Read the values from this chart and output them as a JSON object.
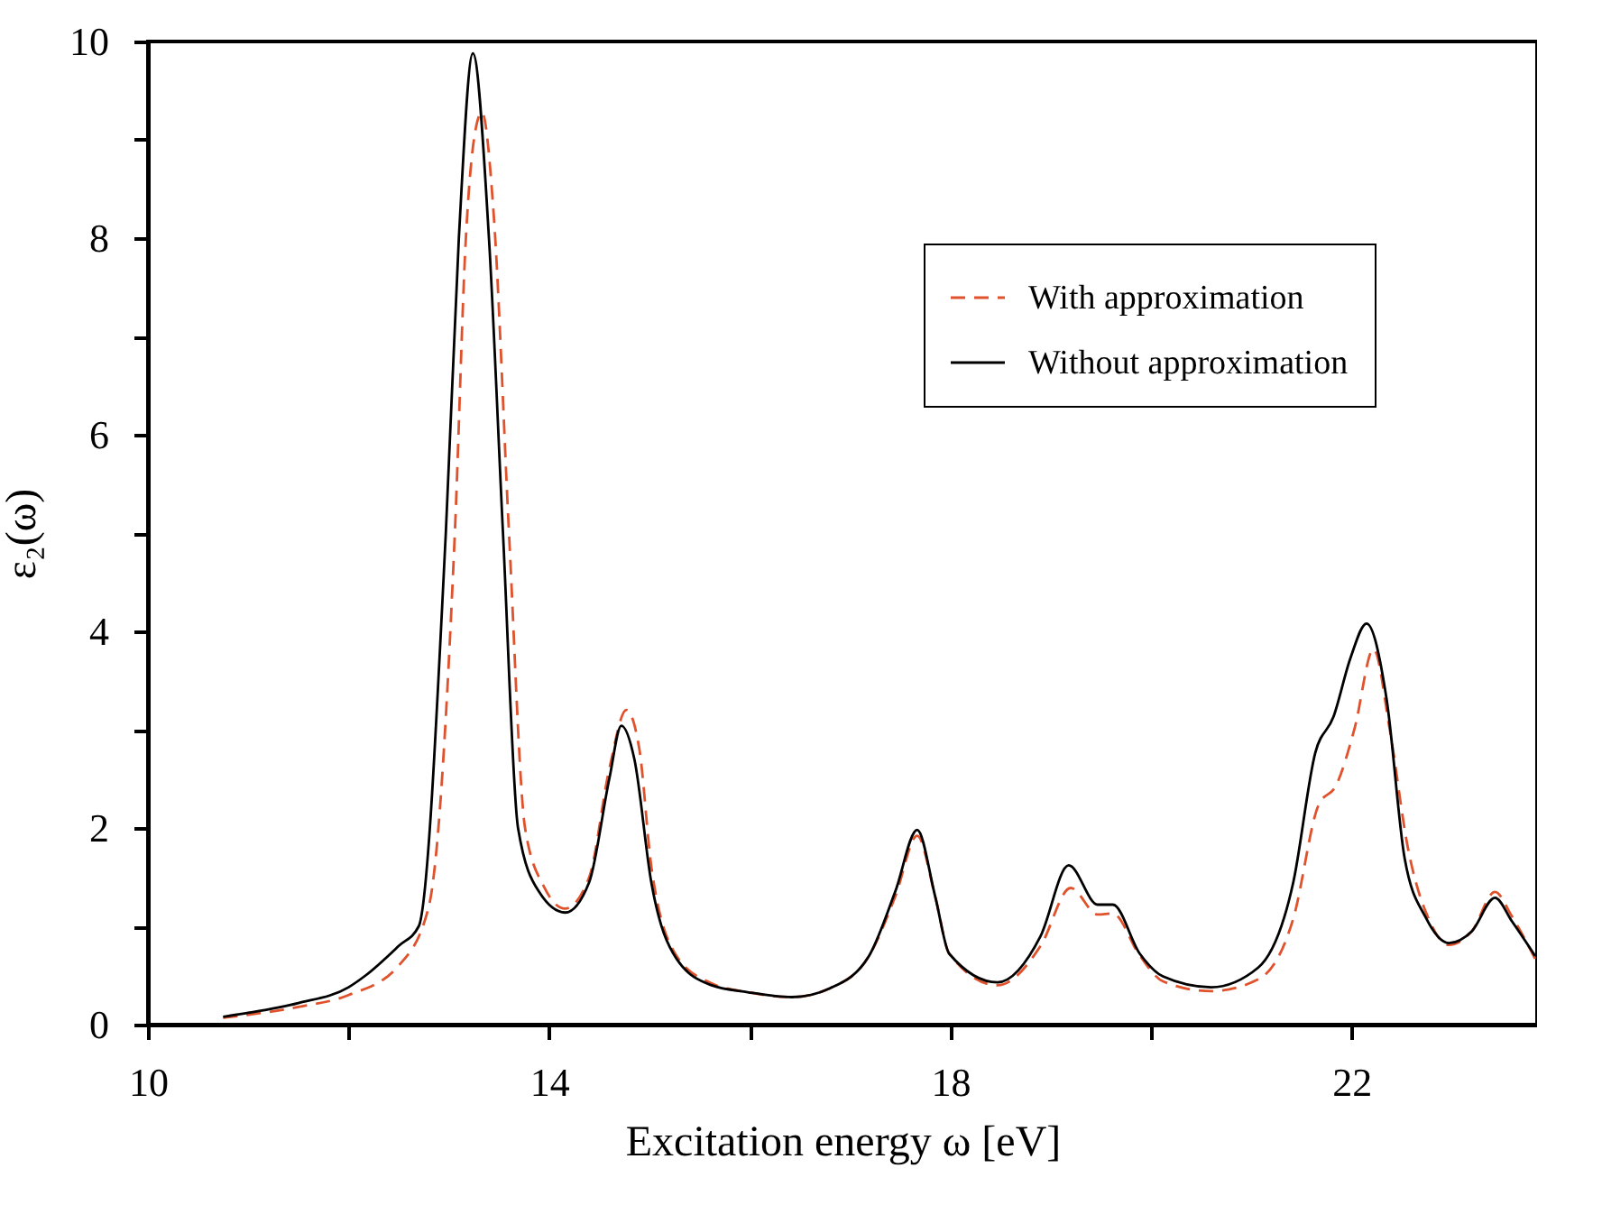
{
  "chart_data": {
    "type": "line",
    "xlabel": "Excitation energy ω [eV]",
    "ylabel": "ε₂(ω)",
    "xlim": [
      10,
      23.85
    ],
    "ylim": [
      0,
      10
    ],
    "xticks": [
      10,
      {
        "value": 12,
        "label": null
      },
      14,
      {
        "value": 16,
        "label": null
      },
      18,
      {
        "value": 20,
        "label": null
      },
      22
    ],
    "yticks": [
      0,
      {
        "value": 1,
        "label": null
      },
      2,
      {
        "value": 3,
        "label": null
      },
      4,
      {
        "value": 5,
        "label": null
      },
      6,
      {
        "value": 7,
        "label": null
      },
      8,
      {
        "value": 9,
        "label": null
      },
      10
    ],
    "grid": false,
    "legend": "top right",
    "marker": "none",
    "series": [
      {
        "name": "With approximation",
        "color": "#e0522c",
        "line_style": "dashed",
        "x": [
          10.75,
          11,
          11.5,
          12,
          12.5,
          12.8,
          13.06,
          13.17,
          13.25,
          13.33,
          13.45,
          13.6,
          13.76,
          13.95,
          14.16,
          14.4,
          14.6,
          14.77,
          14.9,
          15.02,
          15.27,
          15.62,
          15.98,
          16.42,
          16.8,
          17.19,
          17.45,
          17.67,
          17.85,
          17.99,
          18.47,
          18.9,
          19.2,
          19.47,
          19.62,
          19.89,
          20.12,
          20.6,
          21.07,
          21.42,
          21.67,
          21.85,
          22.03,
          22.22,
          22.38,
          22.56,
          22.79,
          22.97,
          23.2,
          23.43,
          23.6,
          23.83
        ],
        "values": [
          0.07,
          0.1,
          0.18,
          0.3,
          0.6,
          1.2,
          5,
          8,
          9.0,
          9.28,
          8.2,
          5,
          2,
          1.4,
          1.18,
          1.5,
          2.6,
          3.2,
          2.8,
          1.6,
          0.7,
          0.42,
          0.33,
          0.28,
          0.37,
          0.7,
          1.3,
          1.92,
          1.3,
          0.72,
          0.4,
          0.8,
          1.39,
          1.12,
          1.13,
          0.7,
          0.44,
          0.34,
          0.46,
          1.08,
          2.23,
          2.44,
          3.01,
          3.82,
          3.01,
          1.81,
          1.03,
          0.81,
          0.95,
          1.35,
          1.1,
          0.67
        ]
      },
      {
        "name": "Without approximation",
        "color": "#000000",
        "line_style": "solid",
        "x": [
          10.75,
          11,
          11.5,
          12,
          12.17,
          12.5,
          12.7,
          12.97,
          13.1,
          13.24,
          13.4,
          13.54,
          13.69,
          13.9,
          14.16,
          14.4,
          14.6,
          14.72,
          14.85,
          15.02,
          15.27,
          15.62,
          15.98,
          16.42,
          16.8,
          17.19,
          17.45,
          17.67,
          17.85,
          17.99,
          18.47,
          18.9,
          19.18,
          19.47,
          19.62,
          19.89,
          20.12,
          20.6,
          21.07,
          21.42,
          21.64,
          21.82,
          21.99,
          22.15,
          22.35,
          22.53,
          22.74,
          22.97,
          23.2,
          23.43,
          23.6,
          23.83
        ],
        "values": [
          0.08,
          0.12,
          0.22,
          0.38,
          0.5,
          0.8,
          1,
          5,
          8,
          9.88,
          8,
          5,
          2,
          1.35,
          1.14,
          1.45,
          2.5,
          3.04,
          2.7,
          1.44,
          0.67,
          0.4,
          0.33,
          0.28,
          0.37,
          0.7,
          1.35,
          1.98,
          1.3,
          0.72,
          0.43,
          0.9,
          1.62,
          1.22,
          1.22,
          0.72,
          0.49,
          0.38,
          0.58,
          1.45,
          2.77,
          3.13,
          3.73,
          4.08,
          3.31,
          1.69,
          1.09,
          0.83,
          0.95,
          1.29,
          1.05,
          0.7
        ]
      }
    ]
  }
}
